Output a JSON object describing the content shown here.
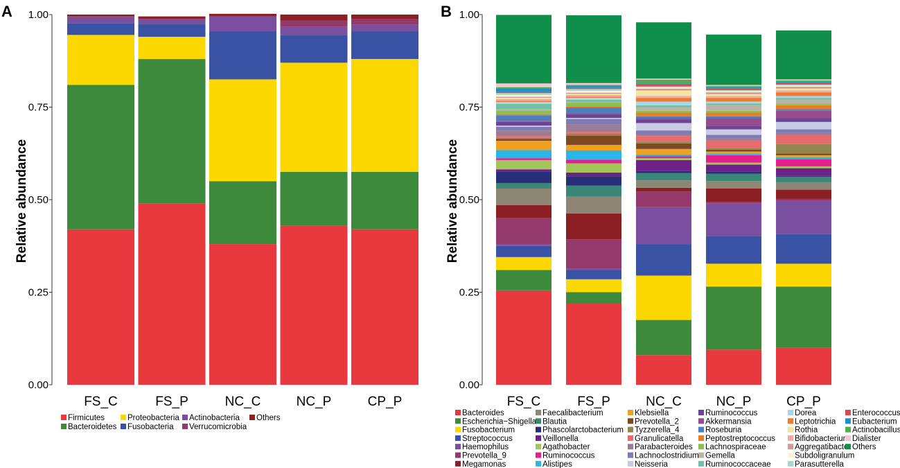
{
  "panels": [
    {
      "letter": "A",
      "chart_data": {
        "type": "bar",
        "stacked": true,
        "title": "",
        "xlabel": "",
        "ylabel": "Relative abundance",
        "ylim": [
          0,
          1
        ],
        "yticks": [
          "0.00",
          "0.25",
          "0.50",
          "0.75",
          "1.00"
        ],
        "categories": [
          "FS_C",
          "FS_P",
          "NC_C",
          "NC_P",
          "CP_P"
        ],
        "series": [
          {
            "name": "Firmicutes",
            "color": "#e8393e",
            "values": [
              0.42,
              0.49,
              0.38,
              0.43,
              0.42
            ]
          },
          {
            "name": "Bacteroidetes",
            "color": "#3d8a3c",
            "values": [
              0.39,
              0.39,
              0.17,
              0.145,
              0.155
            ]
          },
          {
            "name": "Proteobacteria",
            "color": "#fcd800",
            "values": [
              0.135,
              0.06,
              0.275,
              0.295,
              0.305
            ]
          },
          {
            "name": "Fusobacteria",
            "color": "#3a52a4",
            "values": [
              0.032,
              0.035,
              0.13,
              0.075,
              0.075
            ]
          },
          {
            "name": "Actinobacteria",
            "color": "#7b4fa0",
            "values": [
              0.016,
              0.012,
              0.04,
              0.022,
              0.018
            ]
          },
          {
            "name": "Verrucomicrobia",
            "color": "#93396b",
            "values": [
              0.002,
              0.001,
              0.0,
              0.017,
              0.015
            ]
          },
          {
            "name": "Others",
            "color": "#8b1f24",
            "values": [
              0.005,
              0.007,
              0.007,
              0.016,
              0.012
            ]
          }
        ],
        "legend": {
          "position": "bottom",
          "rows": [
            [
              "Firmicutes",
              "Proteobacteria",
              "Actinobacteria",
              "Others"
            ],
            [
              "Bacteroidetes",
              "Fusobacteria",
              "Verrucomicrobia"
            ]
          ]
        }
      }
    },
    {
      "letter": "B",
      "chart_data": {
        "type": "bar",
        "stacked": true,
        "title": "",
        "xlabel": "",
        "ylabel": "Relative abundance",
        "ylim": [
          0,
          1
        ],
        "yticks": [
          "0.00",
          "0.25",
          "0.50",
          "0.75",
          "1.00"
        ],
        "categories": [
          "FS_C",
          "FS_P",
          "NC_C",
          "NC_P",
          "CP_P"
        ],
        "series": [
          {
            "name": "Bacteroides",
            "color": "#e8393e",
            "values": [
              0.255,
              0.22,
              0.08,
              0.095,
              0.1
            ]
          },
          {
            "name": "Escherichia−Shigella",
            "color": "#3d8a3c",
            "values": [
              0.055,
              0.03,
              0.095,
              0.17,
              0.165
            ]
          },
          {
            "name": "Fusobacterium",
            "color": "#fcd800",
            "values": [
              0.035,
              0.035,
              0.12,
              0.062,
              0.062
            ]
          },
          {
            "name": "Streptococcus",
            "color": "#3a52a4",
            "values": [
              0.03,
              0.025,
              0.085,
              0.075,
              0.08
            ]
          },
          {
            "name": "Haemophilus",
            "color": "#7b4fa0",
            "values": [
              0.005,
              0.003,
              0.1,
              0.088,
              0.09
            ]
          },
          {
            "name": "Prevotella_9",
            "color": "#93396b",
            "values": [
              0.07,
              0.08,
              0.042,
              0.003,
              0.005
            ]
          },
          {
            "name": "Megamonas",
            "color": "#8b1f24",
            "values": [
              0.035,
              0.07,
              0.01,
              0.037,
              0.025
            ]
          },
          {
            "name": "Faecalibacterium",
            "color": "#8e8675",
            "values": [
              0.045,
              0.045,
              0.02,
              0.02,
              0.02
            ]
          },
          {
            "name": "Blautia",
            "color": "#3b8777",
            "values": [
              0.015,
              0.03,
              0.02,
              0.02,
              0.015
            ]
          },
          {
            "name": "Phascolarctobacterium",
            "color": "#262f78",
            "values": [
              0.03,
              0.025,
              0.005,
              0.005,
              0.003
            ]
          },
          {
            "name": "Veillonella",
            "color": "#6d2289",
            "values": [
              0.007,
              0.01,
              0.03,
              0.02,
              0.02
            ]
          },
          {
            "name": "Agathobacter",
            "color": "#a3c65b",
            "values": [
              0.025,
              0.025,
              0.005,
              0.005,
              0.005
            ]
          },
          {
            "name": "Ruminococcus",
            "color": "#e41e8c",
            "values": [
              0.005,
              0.01,
              0.005,
              0.02,
              0.02
            ]
          },
          {
            "name": "Alistipes",
            "color": "#2bb6ea",
            "values": [
              0.022,
              0.025,
              0.005,
              0.005,
              0.005
            ]
          },
          {
            "name": "Klebsiella",
            "color": "#eea21f",
            "values": [
              0.025,
              0.015,
              0.015,
              0.005,
              0.005
            ]
          },
          {
            "name": "Prevotella_2",
            "color": "#7d4a20",
            "values": [
              0.005,
              0.025,
              0.015,
              0.005,
              0.005
            ]
          },
          {
            "name": "Tyzzerella_4",
            "color": "#938550",
            "values": [
              0.003,
              0.005,
              0.005,
              0.005,
              0.025
            ]
          },
          {
            "name": "Granulicatella",
            "color": "#e96a6c",
            "values": [
              0.005,
              0.005,
              0.015,
              0.02,
              0.025
            ]
          },
          {
            "name": "Parabacteroides",
            "color": "#9a7c94",
            "values": [
              0.015,
              0.02,
              0.005,
              0.005,
              0.005
            ]
          },
          {
            "name": "Lachnoclostridium",
            "color": "#7d7bb5",
            "values": [
              0.01,
              0.015,
              0.01,
              0.01,
              0.01
            ]
          },
          {
            "name": "Neisseria",
            "color": "#c8cbe3",
            "values": [
              0.003,
              0.003,
              0.02,
              0.015,
              0.02
            ]
          },
          {
            "name": "Ruminococcus",
            "color": "#6a4497",
            "values": [
              0.01,
              0.01,
              0.01,
              0.01,
              0.01
            ]
          },
          {
            "name": "Akkermansia",
            "color": "#974c8f",
            "values": [
              0.003,
              0.003,
              0.003,
              0.02,
              0.02
            ]
          },
          {
            "name": "Roseburia",
            "color": "#4d7fbf",
            "values": [
              0.015,
              0.015,
              0.005,
              0.005,
              0.005
            ]
          },
          {
            "name": "Peptostreptococcus",
            "color": "#e67e27",
            "values": [
              0.003,
              0.003,
              0.01,
              0.01,
              0.01
            ]
          },
          {
            "name": "Lachnospiraceae",
            "color": "#8bbf52",
            "values": [
              0.01,
              0.01,
              0.005,
              0.005,
              0.005
            ]
          },
          {
            "name": "Gemella",
            "color": "#b6b5a8",
            "values": [
              0.003,
              0.003,
              0.01,
              0.015,
              0.01
            ]
          },
          {
            "name": "Ruminococcaceae",
            "color": "#6ec1a3",
            "values": [
              0.015,
              0.005,
              0.005,
              0.005,
              0.005
            ]
          },
          {
            "name": "Dorea",
            "color": "#a9d6ef",
            "values": [
              0.005,
              0.005,
              0.01,
              0.005,
              0.005
            ]
          },
          {
            "name": "Leptotrichia",
            "color": "#ef7b2b",
            "values": [
              0.003,
              0.003,
              0.01,
              0.01,
              0.01
            ]
          },
          {
            "name": "Bifidobacterium",
            "color": "#f4a9a9",
            "values": [
              0.005,
              0.005,
              0.005,
              0.005,
              0.005
            ]
          },
          {
            "name": "Rothia",
            "color": "#f2e6a0",
            "values": [
              0.003,
              0.003,
              0.015,
              0.005,
              0.005
            ]
          },
          {
            "name": "Aggregatibacter",
            "color": "#d49a98",
            "values": [
              0.003,
              0.003,
              0.005,
              0.005,
              0.005
            ]
          },
          {
            "name": "Subdoligranulum",
            "color": "#f8f4d2",
            "values": [
              0.005,
              0.005,
              0.003,
              0.003,
              0.003
            ]
          },
          {
            "name": "Parasutterella",
            "color": "#a8d8c8",
            "values": [
              0.005,
              0.005,
              0.003,
              0.003,
              0.003
            ]
          },
          {
            "name": "Enterococcus",
            "color": "#d94a4f",
            "values": [
              0.003,
              0.003,
              0.005,
              0.005,
              0.005
            ]
          },
          {
            "name": "Eubacterium",
            "color": "#1f8fcb",
            "values": [
              0.01,
              0.005,
              0.003,
              0.003,
              0.003
            ]
          },
          {
            "name": "Actinobacillus",
            "color": "#4fb047",
            "values": [
              0.003,
              0.003,
              0.01,
              0.003,
              0.003
            ]
          },
          {
            "name": "Dialister",
            "color": "#f5c6d3",
            "values": [
              0.01,
              0.005,
              0.003,
              0.003,
              0.003
            ]
          },
          {
            "name": "Others",
            "color": "#0f8f4a",
            "values": [
              0.185,
              0.183,
              0.152,
              0.136,
              0.132
            ]
          }
        ],
        "legend": {
          "position": "bottom",
          "columns": [
            [
              "Bacteroides",
              "Escherichia−Shigella",
              "Fusobacterium",
              "Streptococcus",
              "Haemophilus",
              "Prevotella_9",
              "Megamonas"
            ],
            [
              "Faecalibacterium",
              "Blautia",
              "Phascolarctobacterium",
              "Veillonella",
              "Agathobacter",
              "Ruminococcus",
              "Alistipes"
            ],
            [
              "Klebsiella",
              "Prevotella_2",
              "Tyzzerella_4",
              "Granulicatella",
              "Parabacteroides",
              "Lachnoclostridium",
              "Neisseria"
            ],
            [
              "Ruminococcus",
              "Akkermansia",
              "Roseburia",
              "Peptostreptococcus",
              "Lachnospiraceae",
              "Gemella",
              "Ruminococcaceae"
            ],
            [
              "Dorea",
              "Leptotrichia",
              "Rothia",
              "Bifidobacterium",
              "Aggregatibacter",
              "Subdoligranulum",
              "Parasutterella"
            ],
            [
              "Enterococcus",
              "Eubacterium",
              "Actinobacillus",
              "Dialister",
              "Others"
            ]
          ]
        }
      }
    }
  ]
}
